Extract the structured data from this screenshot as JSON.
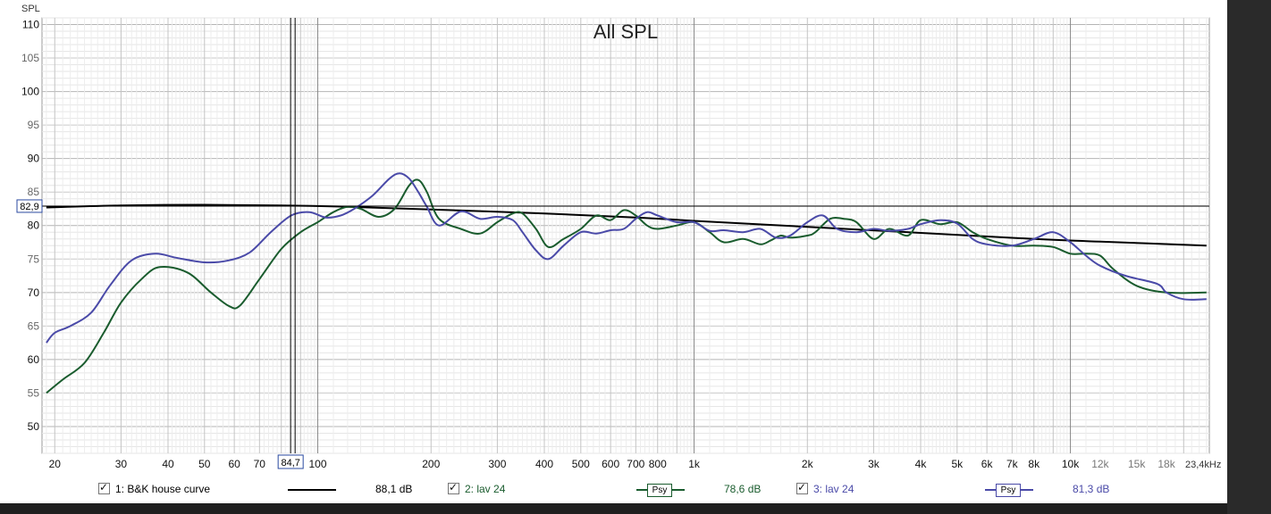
{
  "chart_data": {
    "type": "line",
    "title": "All SPL",
    "ylabel": "SPL",
    "xlabel": "",
    "x_unit_label": "23,4kHz",
    "x_scale": "log",
    "xlim": [
      18.5,
      23400
    ],
    "ylim": [
      46,
      111
    ],
    "y_ticks": [
      50,
      55,
      60,
      65,
      70,
      75,
      80,
      85,
      90,
      95,
      100,
      105,
      110
    ],
    "y_ticks_major": [
      50,
      60,
      70,
      80,
      90,
      100,
      110
    ],
    "x_ticks": [
      {
        "v": 20,
        "label": "20"
      },
      {
        "v": 30,
        "label": "30"
      },
      {
        "v": 40,
        "label": "40"
      },
      {
        "v": 50,
        "label": "50"
      },
      {
        "v": 60,
        "label": "60"
      },
      {
        "v": 70,
        "label": "70"
      },
      {
        "v": 100,
        "label": "100"
      },
      {
        "v": 200,
        "label": "200"
      },
      {
        "v": 300,
        "label": "300"
      },
      {
        "v": 400,
        "label": "400"
      },
      {
        "v": 500,
        "label": "500"
      },
      {
        "v": 600,
        "label": "600"
      },
      {
        "v": 700,
        "label": "700"
      },
      {
        "v": 800,
        "label": "800"
      },
      {
        "v": 1000,
        "label": "1k"
      },
      {
        "v": 2000,
        "label": "2k"
      },
      {
        "v": 3000,
        "label": "3k"
      },
      {
        "v": 4000,
        "label": "4k"
      },
      {
        "v": 5000,
        "label": "5k"
      },
      {
        "v": 6000,
        "label": "6k"
      },
      {
        "v": 7000,
        "label": "7k"
      },
      {
        "v": 8000,
        "label": "8k"
      },
      {
        "v": 10000,
        "label": "10k"
      },
      {
        "v": 12000,
        "label": "12k"
      },
      {
        "v": 15000,
        "label": "15k"
      },
      {
        "v": 18000,
        "label": "18k"
      }
    ],
    "cursor": {
      "x": 84.7,
      "x_label": "84,7",
      "y": 82.9,
      "y_label": "82,9"
    },
    "grid": true,
    "legend_placement": "bottom",
    "series": [
      {
        "name": "1: B&K house curve",
        "color": "#000000",
        "value_label": "88,1 dB",
        "x": [
          19,
          30,
          50,
          80,
          120,
          200,
          400,
          700,
          1000,
          2000,
          4000,
          8000,
          12000,
          23000
        ],
        "y": [
          82.7,
          83.0,
          83.1,
          83.0,
          82.8,
          82.4,
          81.8,
          81.2,
          80.7,
          79.8,
          78.9,
          78.0,
          77.6,
          77.0
        ]
      },
      {
        "name": "2: lav 24",
        "color": "#1a5c2e",
        "badge": "Psy",
        "value_label": "78,6 dB",
        "x": [
          19,
          21,
          24,
          27,
          30,
          34,
          38,
          45,
          52,
          58,
          62,
          70,
          80,
          90,
          100,
          110,
          120,
          130,
          145,
          160,
          175,
          185,
          195,
          210,
          240,
          270,
          300,
          330,
          350,
          380,
          410,
          450,
          500,
          550,
          600,
          650,
          700,
          750,
          800,
          900,
          1000,
          1100,
          1200,
          1350,
          1500,
          1600,
          1700,
          1800,
          2000,
          2100,
          2300,
          2500,
          2700,
          3000,
          3300,
          3700,
          4000,
          4500,
          5000,
          5500,
          6000,
          7000,
          8000,
          9000,
          10000,
          11000,
          12000,
          13000,
          15000,
          18000,
          23000
        ],
        "y": [
          55,
          57,
          59.5,
          64,
          68.5,
          72,
          73.8,
          73,
          70,
          68,
          68,
          72,
          76.5,
          79,
          80.5,
          82,
          82.8,
          82.5,
          81.3,
          82.5,
          86,
          86.8,
          85,
          81,
          79.5,
          78.8,
          80.5,
          81.8,
          81.8,
          79.5,
          76.8,
          78,
          79.5,
          81.5,
          80.8,
          82.3,
          81.5,
          80,
          79.5,
          80,
          80.5,
          79,
          77.5,
          78,
          77.2,
          77.8,
          78.5,
          78.2,
          78.5,
          79,
          81,
          81,
          80.5,
          78,
          79.5,
          78.5,
          80.8,
          80.2,
          80.5,
          79,
          78,
          77,
          77,
          76.8,
          75.8,
          75.8,
          75.5,
          73.5,
          71,
          70,
          70
        ]
      },
      {
        "name": "3: lav 24",
        "color": "#4a4aa8",
        "badge": "Psy",
        "value_label": "81,3 dB",
        "x": [
          19,
          20,
          22,
          25,
          28,
          32,
          37,
          42,
          50,
          58,
          66,
          75,
          85,
          95,
          105,
          115,
          125,
          140,
          155,
          165,
          175,
          185,
          195,
          210,
          240,
          270,
          300,
          330,
          350,
          380,
          410,
          450,
          500,
          550,
          600,
          650,
          700,
          750,
          800,
          900,
          1000,
          1100,
          1200,
          1350,
          1500,
          1650,
          1800,
          2000,
          2200,
          2400,
          2700,
          3000,
          3300,
          3700,
          4000,
          4500,
          5000,
          5500,
          6000,
          7000,
          8000,
          9000,
          10000,
          11000,
          12000,
          14000,
          17000,
          18000,
          20000,
          23000
        ],
        "y": [
          62.5,
          64,
          65,
          67,
          71,
          74.8,
          75.8,
          75.2,
          74.5,
          74.8,
          76,
          79,
          81.5,
          82,
          81.2,
          81.5,
          82.5,
          84.5,
          87,
          87.8,
          87,
          85,
          82.8,
          80,
          82.1,
          81,
          81.3,
          80.8,
          79,
          76.3,
          75,
          77,
          79,
          78.8,
          79.3,
          79.5,
          81,
          82,
          81.5,
          80.5,
          80.5,
          79.2,
          79.3,
          79,
          79.5,
          78.2,
          78.5,
          80.5,
          81.5,
          79.5,
          79,
          79.5,
          79.2,
          79.5,
          80.2,
          80.8,
          80.3,
          78,
          77.2,
          77,
          78,
          79,
          77.5,
          75.5,
          74,
          72.5,
          71.3,
          70,
          69,
          69
        ]
      }
    ]
  }
}
